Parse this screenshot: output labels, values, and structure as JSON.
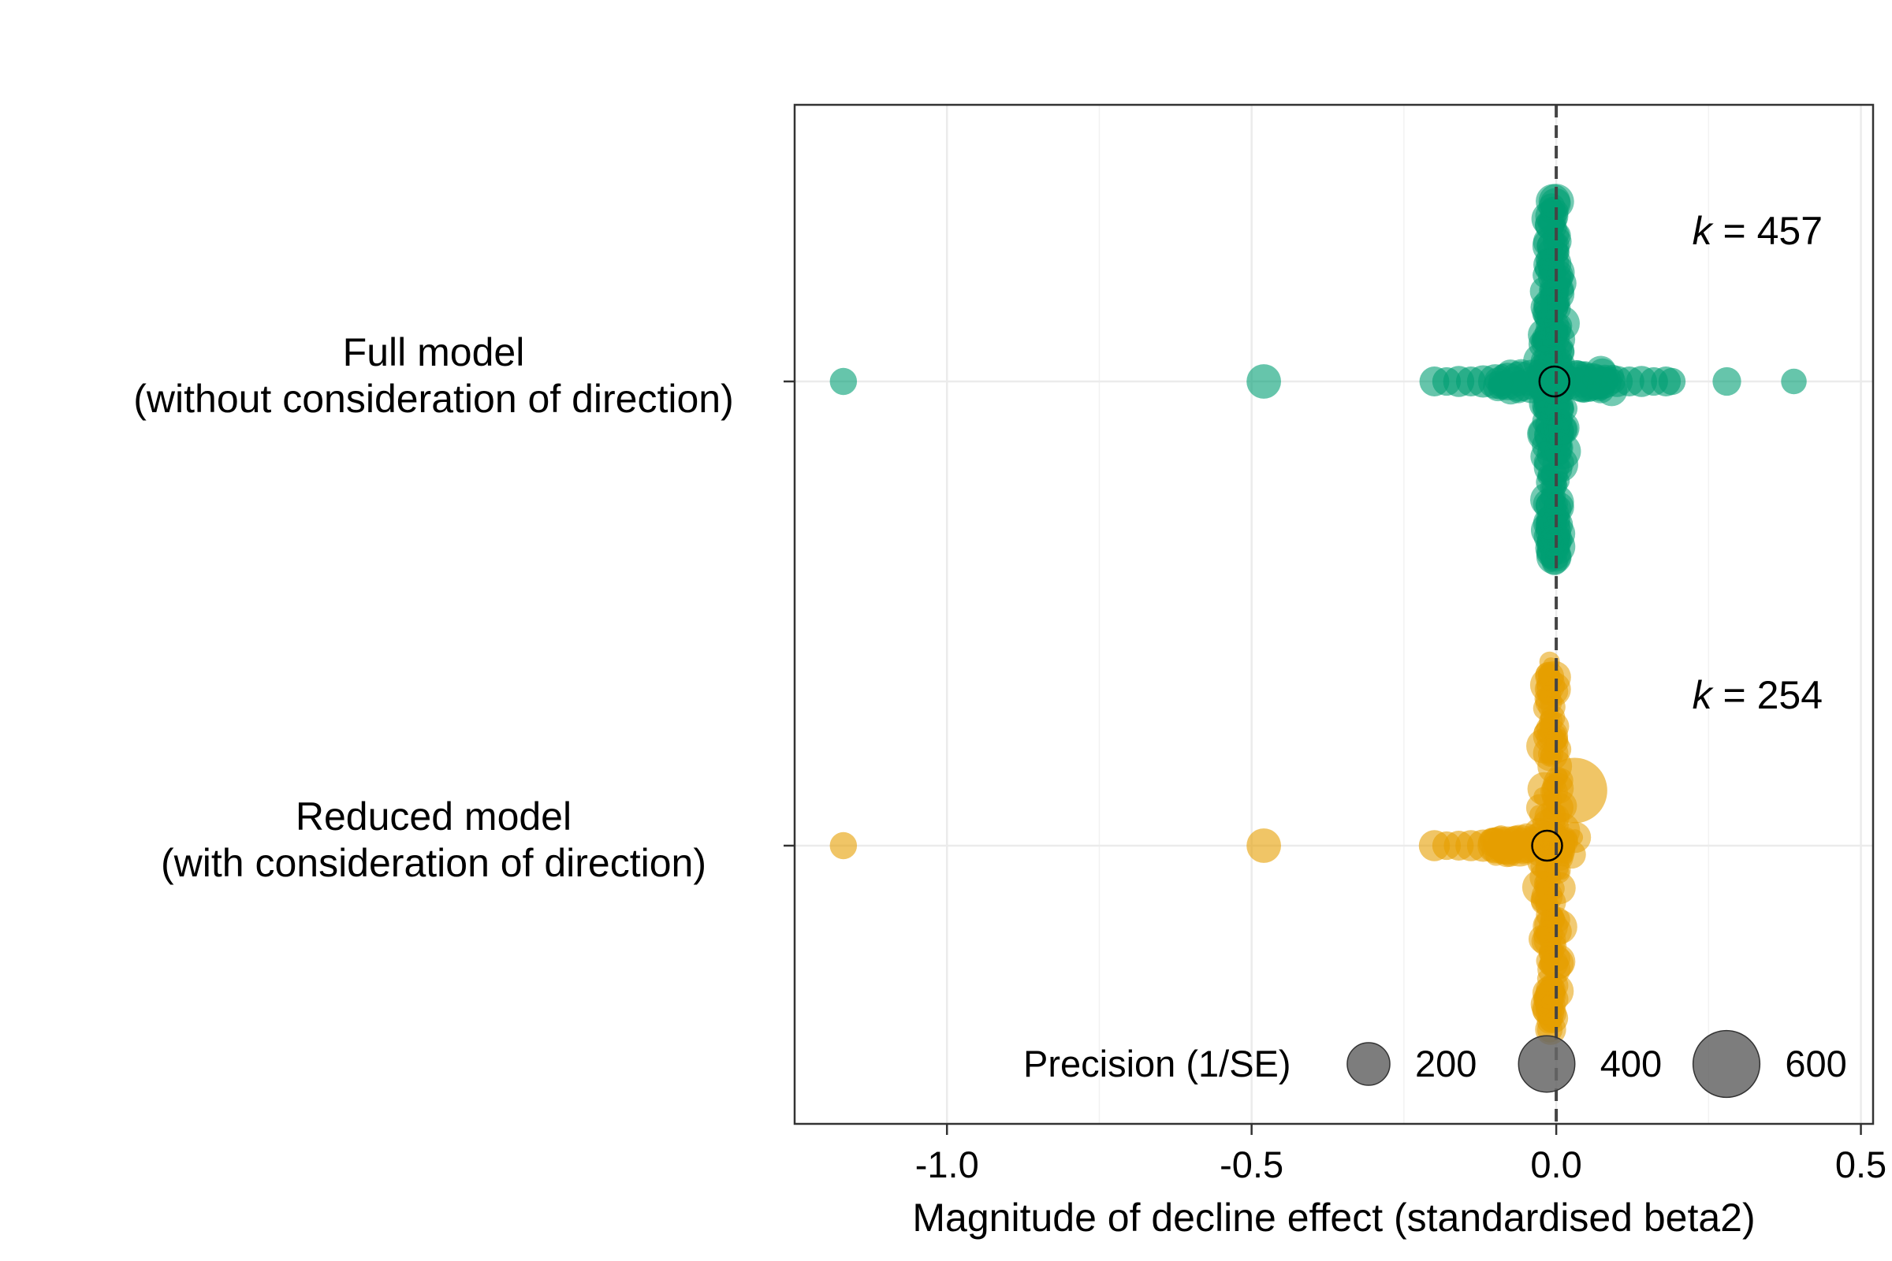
{
  "chart_data": {
    "type": "scatter",
    "xlabel": "Magnitude of decline effect (standardised beta2)",
    "ylabel": "",
    "xlim": [
      -1.25,
      0.52
    ],
    "x_ticks": [
      -1.0,
      -0.5,
      0.0,
      0.5
    ],
    "x_tick_labels": [
      "-1.0",
      "-0.5",
      "0.0",
      "0.5"
    ],
    "reference_line_x": 0,
    "grid": true,
    "categories": [
      "Full model\n(without consideration of direction)",
      "Reduced model\n(with consideration of direction)"
    ],
    "series": [
      {
        "category_index": 0,
        "color": "#009E73",
        "k_label": "k = 457",
        "estimate": -0.003,
        "points": [
          {
            "x": -1.17,
            "precision": 60
          },
          {
            "x": -0.48,
            "precision": 120
          },
          {
            "x": -0.2,
            "precision": 80
          },
          {
            "x": -0.18,
            "precision": 70
          },
          {
            "x": -0.16,
            "precision": 90
          },
          {
            "x": -0.14,
            "precision": 80
          },
          {
            "x": -0.12,
            "precision": 100
          },
          {
            "x": -0.1,
            "precision": 120
          },
          {
            "x": -0.08,
            "precision": 150
          },
          {
            "x": -0.06,
            "precision": 180
          },
          {
            "x": -0.04,
            "precision": 220
          },
          {
            "x": 0.04,
            "precision": 180
          },
          {
            "x": 0.06,
            "precision": 140
          },
          {
            "x": 0.08,
            "precision": 110
          },
          {
            "x": 0.1,
            "precision": 90
          },
          {
            "x": 0.12,
            "precision": 80
          },
          {
            "x": 0.14,
            "precision": 90
          },
          {
            "x": 0.16,
            "precision": 70
          },
          {
            "x": 0.18,
            "precision": 80
          },
          {
            "x": 0.19,
            "precision": 60
          },
          {
            "x": 0.28,
            "precision": 70
          },
          {
            "x": 0.39,
            "precision": 50
          }
        ]
      },
      {
        "category_index": 1,
        "color": "#E69F00",
        "k_label": "k = 254",
        "estimate": -0.015,
        "points": [
          {
            "x": -1.17,
            "precision": 60
          },
          {
            "x": -0.48,
            "precision": 120
          },
          {
            "x": -0.2,
            "precision": 90
          },
          {
            "x": -0.18,
            "precision": 70
          },
          {
            "x": -0.16,
            "precision": 80
          },
          {
            "x": -0.14,
            "precision": 90
          },
          {
            "x": -0.12,
            "precision": 100
          },
          {
            "x": -0.1,
            "precision": 130
          },
          {
            "x": -0.08,
            "precision": 160
          },
          {
            "x": -0.06,
            "precision": 200
          },
          {
            "x": 0.03,
            "precision": 600
          }
        ]
      }
    ],
    "legend": {
      "title": "Precision (1/SE)",
      "position": "bottom-right",
      "entries": [
        {
          "label": "200",
          "value": 200
        },
        {
          "label": "400",
          "value": 400
        },
        {
          "label": "600",
          "value": 600
        }
      ]
    }
  }
}
